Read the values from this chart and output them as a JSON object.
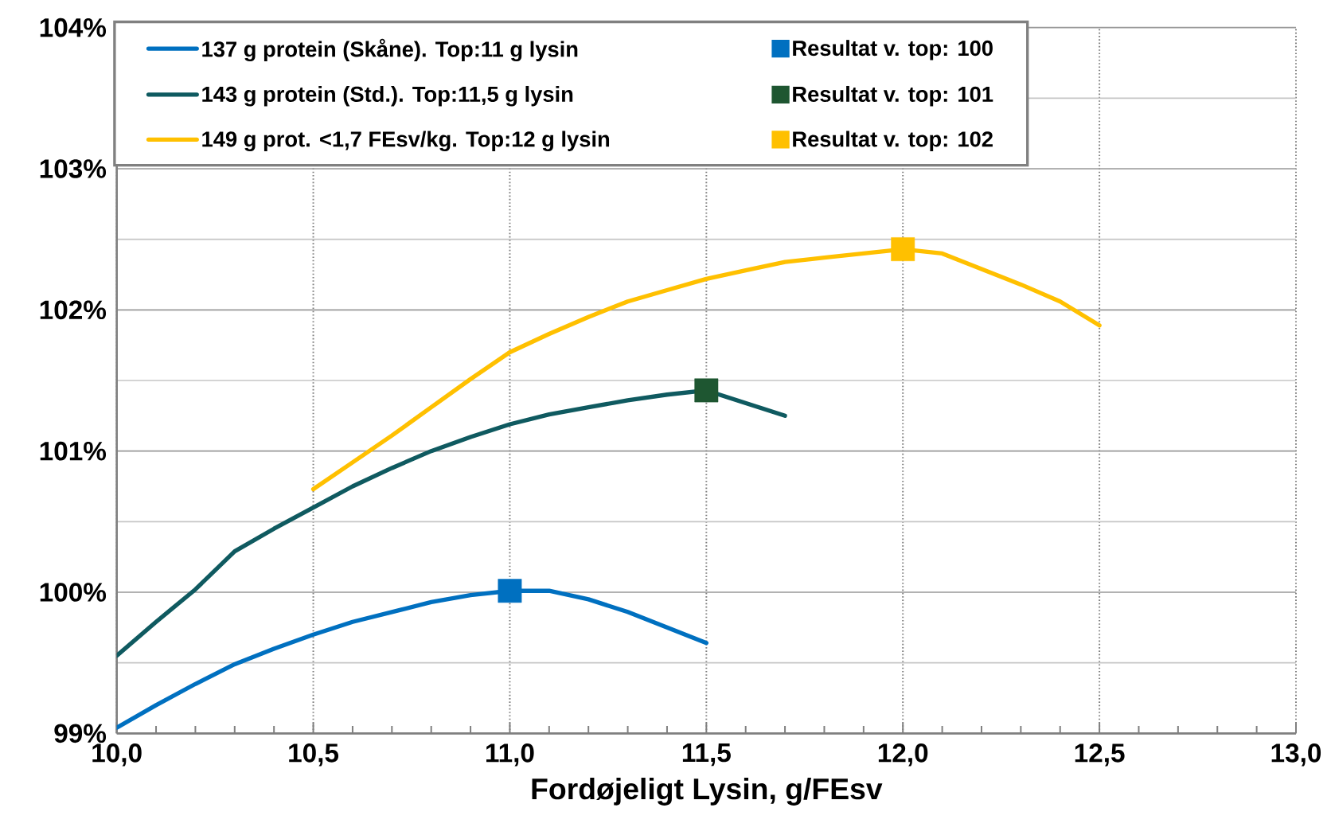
{
  "chart_data": {
    "type": "line",
    "xlabel": "Fordøjeligt Lysin, g/FEsv",
    "xlim": [
      10,
      13
    ],
    "ylim": [
      99,
      104
    ],
    "xticks": [
      {
        "value": 10,
        "label": "10,0"
      },
      {
        "value": 10.5,
        "label": "10,5"
      },
      {
        "value": 11,
        "label": "11,0"
      },
      {
        "value": 11.5,
        "label": "11,5"
      },
      {
        "value": 12,
        "label": "12,0"
      },
      {
        "value": 12.5,
        "label": "12,5"
      },
      {
        "value": 13,
        "label": "13,0"
      }
    ],
    "yticks": [
      {
        "value": 99,
        "label": "99%"
      },
      {
        "value": 100,
        "label": "100%"
      },
      {
        "value": 101,
        "label": "101%"
      },
      {
        "value": 102,
        "label": "102%"
      },
      {
        "value": 103,
        "label": "103%"
      },
      {
        "value": 104,
        "label": "104%"
      }
    ],
    "grid": true,
    "legend": "top",
    "series": [
      {
        "name": "137 g protein (Skåne). Top:11 g lysin",
        "color": "#0070c0",
        "marker": "none",
        "x": [
          10.0,
          10.1,
          10.2,
          10.3,
          10.4,
          10.5,
          10.6,
          10.7,
          10.8,
          10.9,
          11.0,
          11.1,
          11.2,
          11.3,
          11.4,
          11.5
        ],
        "values": [
          99.04,
          99.2,
          99.35,
          99.49,
          99.6,
          99.7,
          99.79,
          99.86,
          99.93,
          99.98,
          100.01,
          100.01,
          99.95,
          99.86,
          99.75,
          99.64
        ]
      },
      {
        "type": "scatter",
        "name": "Resultat v. top: 100",
        "color": "#0070c0",
        "marker": "square",
        "x": [
          11.0
        ],
        "values": [
          100.01
        ]
      },
      {
        "name": "143 g protein (Std.). Top:11,5 g lysin",
        "color": "#0f5a60",
        "marker": "none",
        "x": [
          10.0,
          10.1,
          10.2,
          10.3,
          10.4,
          10.5,
          10.6,
          10.7,
          10.8,
          10.9,
          11.0,
          11.1,
          11.2,
          11.3,
          11.4,
          11.5,
          11.6,
          11.7
        ],
        "values": [
          99.55,
          99.79,
          100.02,
          100.29,
          100.45,
          100.6,
          100.75,
          100.88,
          101.0,
          101.1,
          101.19,
          101.26,
          101.31,
          101.36,
          101.4,
          101.43,
          101.34,
          101.25
        ]
      },
      {
        "type": "scatter",
        "name": "Resultat v. top: 101",
        "color": "#1e5631",
        "marker": "square",
        "x": [
          11.5
        ],
        "values": [
          101.43
        ]
      },
      {
        "name": "149 g prot. <1,7 FEsv/kg. Top:12 g lysin",
        "color": "#ffc000",
        "marker": "none",
        "x": [
          10.5,
          10.6,
          10.7,
          10.8,
          10.9,
          11.0,
          11.1,
          11.2,
          11.3,
          11.4,
          11.5,
          11.6,
          11.7,
          11.8,
          11.9,
          12.0,
          12.1,
          12.2,
          12.3,
          12.4,
          12.5
        ],
        "values": [
          100.73,
          100.92,
          101.11,
          101.31,
          101.51,
          101.7,
          101.83,
          101.95,
          102.06,
          102.14,
          102.22,
          102.28,
          102.34,
          102.37,
          102.4,
          102.43,
          102.4,
          102.29,
          102.18,
          102.06,
          101.89
        ]
      },
      {
        "type": "scatter",
        "name": "Resultat v. top: 102",
        "color": "#ffc000",
        "marker": "square",
        "x": [
          12.0
        ],
        "values": [
          102.43
        ]
      }
    ]
  }
}
